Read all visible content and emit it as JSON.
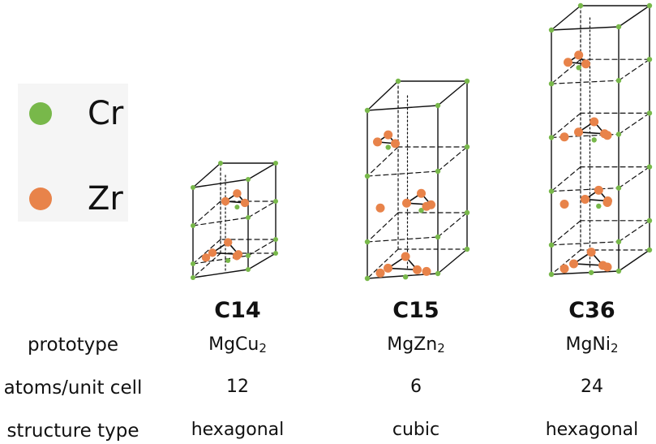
{
  "colors": {
    "cr": "#78b84a",
    "zr": "#e8834a",
    "edge": "#111111"
  },
  "legend": [
    {
      "label": "Cr",
      "color": "#78b84a"
    },
    {
      "label": "Zr",
      "color": "#e8834a"
    }
  ],
  "structures": [
    {
      "name": "C14",
      "prototype_base": "MgCu",
      "prototype_sub": "2",
      "atoms": "12",
      "type": "hexagonal"
    },
    {
      "name": "C15",
      "prototype_base": "MgZn",
      "prototype_sub": "2",
      "atoms": "6",
      "type": "cubic"
    },
    {
      "name": "C36",
      "prototype_base": "MgNi",
      "prototype_sub": "2",
      "atoms": "24",
      "type": "hexagonal"
    }
  ],
  "rows": {
    "prototype": "prototype",
    "atoms": "atoms/unit cell",
    "type": "structure type"
  }
}
